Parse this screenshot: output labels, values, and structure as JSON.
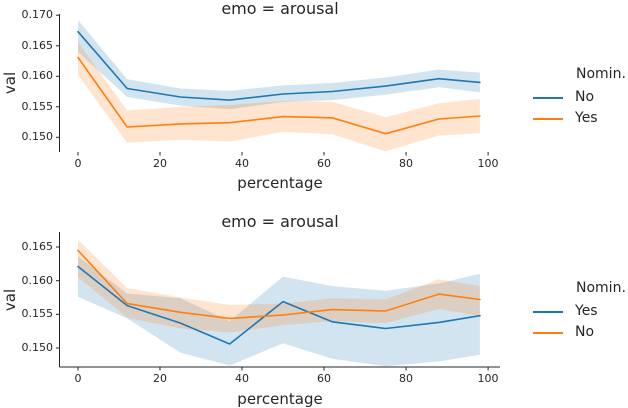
{
  "chart_data": [
    {
      "type": "line",
      "title": "emo = arousal",
      "xlabel": "percentage",
      "ylabel": "val",
      "x": [
        0,
        12,
        25,
        37,
        50,
        62,
        75,
        88,
        98
      ],
      "xlim": [
        -4.5,
        102.9
      ],
      "ylim": [
        0.1476,
        0.1702
      ],
      "x_ticks": [
        0,
        20,
        40,
        60,
        80,
        100
      ],
      "x_tick_labels": [
        "0",
        "20",
        "40",
        "60",
        "80",
        "100"
      ],
      "y_ticks": [
        0.17,
        0.165,
        0.16,
        0.155,
        0.15
      ],
      "y_tick_labels": [
        "0.170",
        "0.165",
        "0.160",
        "0.155",
        "0.150"
      ],
      "grid": false,
      "legend_title": "Nomin.",
      "legend_position": "right",
      "band_opacity": 0.2,
      "series": [
        {
          "name": "No",
          "color": "#1f77b4",
          "values": [
            0.1673,
            0.158,
            0.1566,
            0.1561,
            0.1571,
            0.1575,
            0.1584,
            0.1596,
            0.159
          ],
          "band_low": [
            0.164,
            0.1566,
            0.1552,
            0.1546,
            0.1558,
            0.1561,
            0.157,
            0.1582,
            0.1574
          ],
          "band_high": [
            0.1692,
            0.1595,
            0.158,
            0.1576,
            0.1585,
            0.1589,
            0.1598,
            0.1611,
            0.1606
          ]
        },
        {
          "name": "Yes",
          "color": "#ff7f0e",
          "values": [
            0.1631,
            0.1517,
            0.1522,
            0.1524,
            0.1534,
            0.1532,
            0.1506,
            0.153,
            0.1535
          ],
          "band_low": [
            0.1602,
            0.1491,
            0.1496,
            0.1493,
            0.1509,
            0.1505,
            0.1477,
            0.1503,
            0.1507
          ],
          "band_high": [
            0.1656,
            0.1544,
            0.155,
            0.1553,
            0.156,
            0.1558,
            0.1533,
            0.1556,
            0.1563
          ]
        }
      ]
    },
    {
      "type": "line",
      "title": "emo = arousal",
      "xlabel": "percentage",
      "ylabel": "val",
      "x": [
        0,
        12,
        25,
        37,
        50,
        62,
        75,
        88,
        98
      ],
      "xlim": [
        -4.5,
        102.9
      ],
      "ylim": [
        0.14718,
        0.16723
      ],
      "x_ticks": [
        0,
        20,
        40,
        60,
        80,
        100
      ],
      "x_tick_labels": [
        "0",
        "20",
        "40",
        "60",
        "80",
        "100"
      ],
      "y_ticks": [
        0.165,
        0.16,
        0.155,
        0.15
      ],
      "y_tick_labels": [
        "0.165",
        "0.160",
        "0.155",
        "0.150"
      ],
      "grid": false,
      "legend_title": "Nomin.",
      "legend_position": "right",
      "band_opacity": 0.2,
      "series": [
        {
          "name": "Yes",
          "color": "#1f77b4",
          "values": [
            0.1621,
            0.1563,
            0.1537,
            0.1506,
            0.1569,
            0.1539,
            0.1529,
            0.1538,
            0.1548
          ],
          "band_low": [
            0.1576,
            0.1544,
            0.1493,
            0.1474,
            0.1507,
            0.1484,
            0.1473,
            0.148,
            0.149
          ],
          "band_high": [
            0.1636,
            0.1581,
            0.1574,
            0.154,
            0.1606,
            0.1592,
            0.1585,
            0.1596,
            0.161
          ]
        },
        {
          "name": "No",
          "color": "#ff7f0e",
          "values": [
            0.1645,
            0.1566,
            0.1553,
            0.1544,
            0.1549,
            0.1557,
            0.1555,
            0.158,
            0.1572
          ],
          "band_low": [
            0.1605,
            0.1545,
            0.1529,
            0.1523,
            0.1534,
            0.154,
            0.1537,
            0.1558,
            0.1548
          ],
          "band_high": [
            0.1661,
            0.1589,
            0.1575,
            0.1564,
            0.1566,
            0.1574,
            0.1572,
            0.1602,
            0.1592
          ]
        }
      ]
    }
  ],
  "style": {
    "axis_color": "#262626",
    "text_color": "#262626",
    "background": "#ffffff"
  }
}
